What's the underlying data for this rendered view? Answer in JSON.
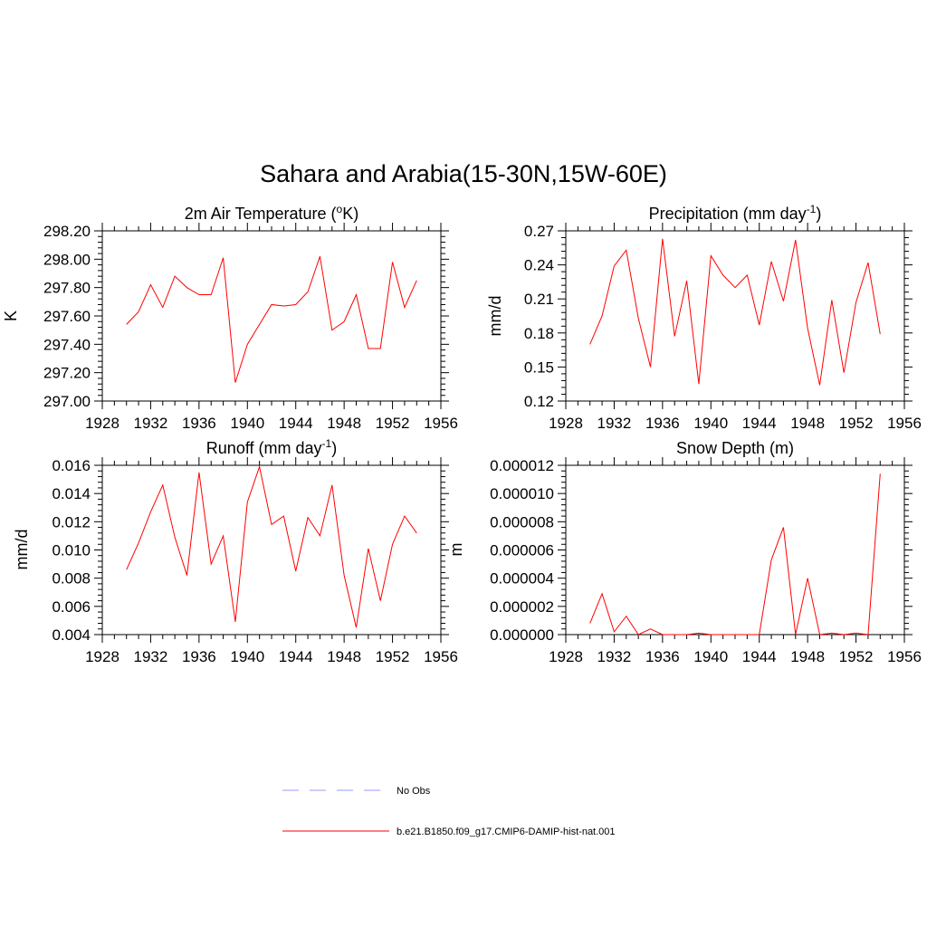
{
  "figure": {
    "title": "Sahara and Arabia(15-30N,15W-60E)",
    "background": "#ffffff",
    "series_color": "#ff0000",
    "obs_color": "#9999ff"
  },
  "legend": {
    "entries": [
      {
        "label": "No Obs",
        "style": "dashed",
        "color": "#9999ff"
      },
      {
        "label": "b.e21.B1850.f09_g17.CMIP6-DAMIP-hist-nat.001",
        "style": "solid",
        "color": "#ff0000"
      }
    ]
  },
  "chart_data": [
    {
      "type": "line",
      "title": "2m Air Temperature (",
      "title_sup": "o",
      "title_tail": "K)",
      "ylabel": "K",
      "xlim": [
        1928,
        1956
      ],
      "ylim": [
        297.0,
        298.2
      ],
      "xticks": [
        1928,
        1932,
        1936,
        1940,
        1944,
        1948,
        1952,
        1956
      ],
      "yticks": [
        "297.00",
        "297.20",
        "297.40",
        "297.60",
        "297.80",
        "298.00",
        "298.20"
      ],
      "series": [
        {
          "x": [
            1930,
            1931,
            1932,
            1933,
            1934,
            1935,
            1936,
            1937,
            1938,
            1939,
            1940,
            1941,
            1942,
            1943,
            1944,
            1945,
            1946,
            1947,
            1948,
            1949,
            1950,
            1951,
            1952,
            1953,
            1954
          ],
          "y": [
            297.54,
            297.63,
            297.82,
            297.66,
            297.88,
            297.8,
            297.75,
            297.75,
            298.01,
            297.13,
            297.4,
            297.54,
            297.68,
            297.67,
            297.68,
            297.77,
            298.02,
            297.5,
            297.56,
            297.75,
            297.37,
            297.37,
            297.98,
            297.66,
            297.85
          ]
        }
      ]
    },
    {
      "type": "line",
      "title": "Precipitation (mm day",
      "title_sup": "-1",
      "title_tail": ")",
      "ylabel": "mm/d",
      "xlim": [
        1928,
        1956
      ],
      "ylim": [
        0.12,
        0.27
      ],
      "xticks": [
        1928,
        1932,
        1936,
        1940,
        1944,
        1948,
        1952,
        1956
      ],
      "yticks": [
        "0.12",
        "0.15",
        "0.18",
        "0.21",
        "0.24",
        "0.27"
      ],
      "series": [
        {
          "x": [
            1930,
            1931,
            1932,
            1933,
            1934,
            1935,
            1936,
            1937,
            1938,
            1939,
            1940,
            1941,
            1942,
            1943,
            1944,
            1945,
            1946,
            1947,
            1948,
            1949,
            1950,
            1951,
            1952,
            1953,
            1954
          ],
          "y": [
            0.17,
            0.195,
            0.239,
            0.253,
            0.193,
            0.15,
            0.263,
            0.177,
            0.226,
            0.135,
            0.248,
            0.231,
            0.22,
            0.231,
            0.187,
            0.243,
            0.208,
            0.262,
            0.184,
            0.134,
            0.209,
            0.145,
            0.207,
            0.242,
            0.179
          ]
        }
      ]
    },
    {
      "type": "line",
      "title": "Runoff (mm day",
      "title_sup": "-1",
      "title_tail": ")",
      "ylabel": "mm/d",
      "xlim": [
        1928,
        1956
      ],
      "ylim": [
        0.004,
        0.016
      ],
      "xticks": [
        1928,
        1932,
        1936,
        1940,
        1944,
        1948,
        1952,
        1956
      ],
      "yticks": [
        "0.004",
        "0.006",
        "0.008",
        "0.010",
        "0.012",
        "0.014",
        "0.016"
      ],
      "series": [
        {
          "x": [
            1930,
            1931,
            1932,
            1933,
            1934,
            1935,
            1936,
            1937,
            1938,
            1939,
            1940,
            1941,
            1942,
            1943,
            1944,
            1945,
            1946,
            1947,
            1948,
            1949,
            1950,
            1951,
            1952,
            1953,
            1954
          ],
          "y": [
            0.0086,
            0.0105,
            0.0127,
            0.0146,
            0.0109,
            0.0082,
            0.0155,
            0.009,
            0.011,
            0.0049,
            0.0134,
            0.0159,
            0.0118,
            0.0124,
            0.0085,
            0.0123,
            0.011,
            0.0146,
            0.0082,
            0.0045,
            0.0101,
            0.0064,
            0.0104,
            0.0124,
            0.0112
          ]
        }
      ]
    },
    {
      "type": "line",
      "title": "Snow Depth (m)",
      "title_sup": "",
      "title_tail": "",
      "ylabel": "m",
      "xlim": [
        1928,
        1956
      ],
      "ylim": [
        0.0,
        1.2e-05
      ],
      "xticks": [
        1928,
        1932,
        1936,
        1940,
        1944,
        1948,
        1952,
        1956
      ],
      "yticks": [
        "0.000000",
        "0.000002",
        "0.000004",
        "0.000006",
        "0.000008",
        "0.000010",
        "0.000012"
      ],
      "series": [
        {
          "x": [
            1930,
            1931,
            1932,
            1933,
            1934,
            1935,
            1936,
            1937,
            1938,
            1939,
            1940,
            1941,
            1942,
            1943,
            1944,
            1945,
            1946,
            1947,
            1948,
            1949,
            1950,
            1951,
            1952,
            1953,
            1954
          ],
          "y": [
            8e-07,
            2.9e-06,
            2e-07,
            1.3e-06,
            0.0,
            4e-07,
            0.0,
            0.0,
            0.0,
            1e-07,
            0.0,
            0.0,
            0.0,
            0.0,
            0.0,
            5.3e-06,
            7.6e-06,
            0.0,
            4e-06,
            0.0,
            1e-07,
            0.0,
            1e-07,
            0.0,
            1.14e-05
          ]
        }
      ]
    }
  ]
}
